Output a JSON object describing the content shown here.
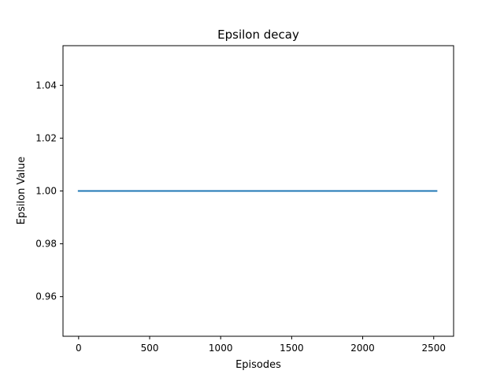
{
  "chart_data": {
    "type": "line",
    "title": "Epsilon decay",
    "xlabel": "Episodes",
    "ylabel": "Epsilon Value",
    "xlim": [
      -110,
      2640
    ],
    "ylim": [
      0.945,
      1.055
    ],
    "xticks": [
      0,
      500,
      1000,
      1500,
      2000,
      2500
    ],
    "xtick_labels": [
      "0",
      "500",
      "1000",
      "1500",
      "2000",
      "2500"
    ],
    "yticks": [
      0.96,
      0.98,
      1.0,
      1.02,
      1.04
    ],
    "ytick_labels": [
      "0.96",
      "0.98",
      "1.00",
      "1.02",
      "1.04"
    ],
    "grid": false,
    "series": [
      {
        "color": "#1f77b4",
        "x": [
          0,
          2520
        ],
        "y": [
          1.0,
          1.0
        ]
      }
    ]
  }
}
